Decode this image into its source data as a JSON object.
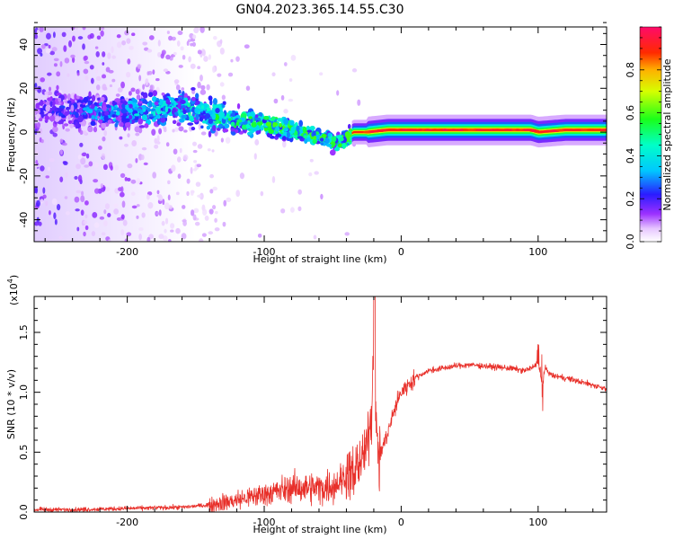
{
  "title": "GN04.2023.365.14.55.C30",
  "chart_data": [
    {
      "type": "heatmap",
      "xlabel": "Height of straight line (km)",
      "ylabel": "Frequency (Hz)",
      "xlim": [
        -268,
        150
      ],
      "ylim": [
        -50,
        48
      ],
      "xticks": [
        -200,
        -100,
        0,
        100
      ],
      "yticks": [
        -40,
        -20,
        0,
        20,
        40
      ],
      "xtick_labels": [
        "-200",
        "-100",
        "0",
        "100"
      ],
      "ytick_labels": [
        "-40",
        "-20",
        "0",
        "20",
        "40"
      ],
      "colorbar": {
        "label": "Normalized spectral amplitude",
        "range": [
          0,
          1
        ],
        "ticks": [
          0.0,
          0.2,
          0.4,
          0.6,
          0.8
        ],
        "tick_labels": [
          "0.0",
          "0.2",
          "0.4",
          "0.6",
          "0.8"
        ],
        "colormap": "rainbow (white-violet-blue-cyan-green-yellow-red-magenta)"
      },
      "ridge": {
        "x": [
          -268,
          -240,
          -220,
          -200,
          -180,
          -160,
          -140,
          -120,
          -100,
          -80,
          -60,
          -45,
          -35,
          -25,
          -10,
          0,
          20,
          40,
          60,
          80,
          95,
          100,
          120,
          150
        ],
        "y": [
          10,
          10,
          9,
          9,
          10,
          11,
          8,
          5,
          4,
          1,
          -2,
          -5,
          0,
          0,
          1,
          1,
          1,
          1,
          1,
          1,
          1,
          0,
          1,
          1
        ],
        "amplitude": [
          0.15,
          0.22,
          0.28,
          0.32,
          0.35,
          0.38,
          0.42,
          0.48,
          0.52,
          0.55,
          0.55,
          0.5,
          0.7,
          0.85,
          0.85,
          0.82,
          0.75,
          0.78,
          0.85,
          0.9,
          0.88,
          0.75,
          0.72,
          0.7
        ]
      }
    },
    {
      "type": "line",
      "xlabel": "Height of straight line (km)",
      "ylabel": "SNR (10 * v/v)",
      "yscale_label": "(x10",
      "yscale_exp": "4",
      "xlim": [
        -268,
        150
      ],
      "ylim": [
        0,
        1.8
      ],
      "xticks": [
        -200,
        -100,
        0,
        100
      ],
      "yticks": [
        0.0,
        0.5,
        1.0,
        1.5
      ],
      "xtick_labels": [
        "-200",
        "-100",
        "0",
        "100"
      ],
      "ytick_labels": [
        "0.0",
        "0.5",
        "1.0",
        "1.5"
      ],
      "color": "#e8302a",
      "series": [
        {
          "x": [
            -268,
            -240,
            -200,
            -160,
            -140,
            -120,
            -100,
            -80,
            -60,
            -50,
            -40,
            -35,
            -30,
            -25,
            -22,
            -20,
            -18,
            -15,
            -10,
            -5,
            0,
            10,
            20,
            30,
            40,
            50,
            60,
            70,
            80,
            90,
            95,
            100,
            103,
            105,
            110,
            120,
            130,
            140,
            150
          ],
          "y": [
            0.02,
            0.02,
            0.03,
            0.04,
            0.06,
            0.1,
            0.15,
            0.2,
            0.2,
            0.22,
            0.3,
            0.35,
            0.42,
            0.55,
            0.8,
            1.45,
            0.6,
            0.5,
            0.65,
            0.85,
            1.0,
            1.12,
            1.18,
            1.2,
            1.22,
            1.23,
            1.22,
            1.21,
            1.2,
            1.18,
            1.2,
            1.25,
            1.05,
            1.2,
            1.14,
            1.12,
            1.09,
            1.06,
            1.03
          ]
        }
      ]
    }
  ]
}
